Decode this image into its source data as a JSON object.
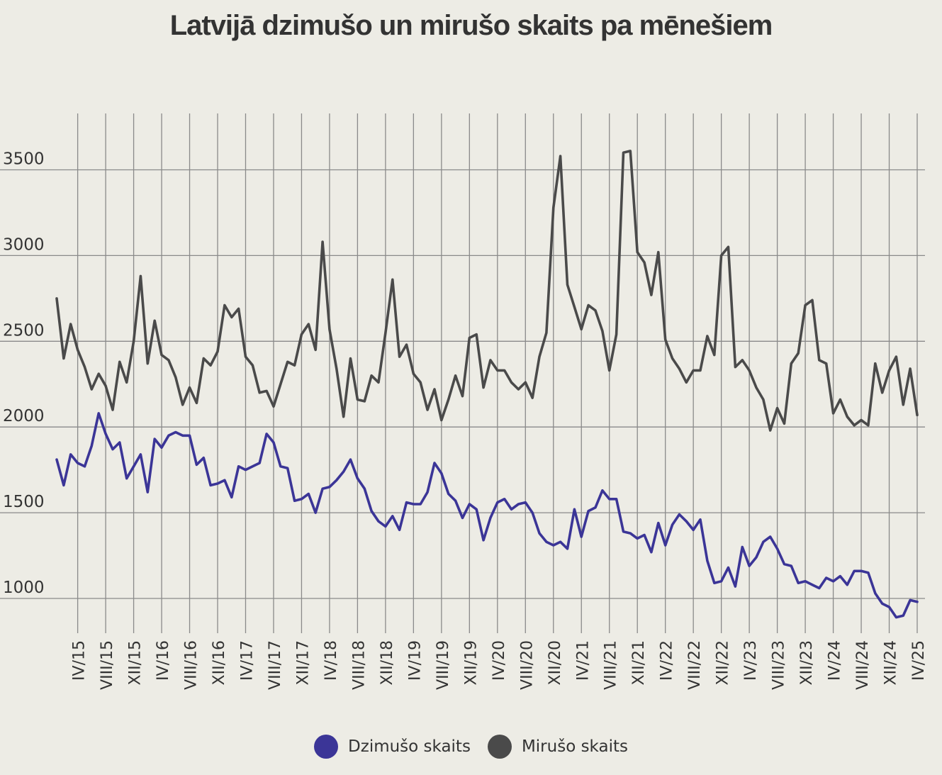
{
  "chart_data": {
    "type": "line",
    "title": "Latvijā dzimušo un mirušo skaits pa mēnešiem",
    "xlabel": "",
    "ylabel": "",
    "ylim": [
      830,
      3800
    ],
    "yticks": [
      1000,
      1500,
      2000,
      2500,
      3000,
      3500
    ],
    "grid": true,
    "legend_position": "bottom-center",
    "x_range": [
      "I/15",
      "IV/25"
    ],
    "x_tick_labels": [
      "IV/15",
      "VIII/15",
      "XII/15",
      "IV/16",
      "VIII/16",
      "XII/16",
      "IV/17",
      "VIII/17",
      "XII/17",
      "IV/18",
      "VIII/18",
      "XII/18",
      "IV/19",
      "VIII/19",
      "XII/19",
      "IV/20",
      "VIII/20",
      "XII/20",
      "IV/21",
      "VIII/21",
      "XII/21",
      "IV/22",
      "VIII/22",
      "XII/22",
      "IV/23",
      "VIII/23",
      "XII/23",
      "IV/24",
      "VIII/24",
      "XII/24",
      "IV/25"
    ],
    "series": [
      {
        "name": "Dzimušo skaits",
        "color": "#3b3597",
        "values": [
          1810,
          1660,
          1840,
          1790,
          1770,
          1890,
          2080,
          1960,
          1870,
          1910,
          1700,
          1770,
          1840,
          1620,
          1930,
          1880,
          1950,
          1970,
          1950,
          1950,
          1780,
          1820,
          1660,
          1670,
          1690,
          1590,
          1770,
          1750,
          1770,
          1790,
          1960,
          1910,
          1770,
          1760,
          1570,
          1580,
          1610,
          1500,
          1640,
          1650,
          1690,
          1740,
          1810,
          1700,
          1640,
          1510,
          1450,
          1420,
          1480,
          1400,
          1560,
          1550,
          1550,
          1620,
          1790,
          1730,
          1610,
          1570,
          1470,
          1550,
          1520,
          1340,
          1470,
          1560,
          1580,
          1520,
          1550,
          1560,
          1500,
          1380,
          1330,
          1310,
          1330,
          1290,
          1520,
          1360,
          1510,
          1530,
          1630,
          1580,
          1580,
          1390,
          1380,
          1350,
          1370,
          1270,
          1440,
          1310,
          1430,
          1490,
          1450,
          1400,
          1460,
          1220,
          1090,
          1100,
          1180,
          1070,
          1300,
          1190,
          1240,
          1330,
          1360,
          1290,
          1200,
          1190,
          1090,
          1100,
          1080,
          1060,
          1120,
          1100,
          1130,
          1080,
          1160,
          1160,
          1150,
          1030,
          970,
          950,
          890,
          900,
          990,
          980
        ]
      },
      {
        "name": "Mirušo skaits",
        "color": "#4a4a4a",
        "values": [
          2750,
          2400,
          2600,
          2450,
          2350,
          2220,
          2310,
          2240,
          2100,
          2380,
          2260,
          2500,
          2880,
          2370,
          2620,
          2420,
          2390,
          2290,
          2130,
          2230,
          2140,
          2400,
          2360,
          2440,
          2710,
          2640,
          2690,
          2410,
          2360,
          2200,
          2210,
          2120,
          2250,
          2380,
          2360,
          2540,
          2600,
          2450,
          3080,
          2570,
          2340,
          2060,
          2400,
          2160,
          2150,
          2300,
          2260,
          2550,
          2860,
          2410,
          2480,
          2310,
          2260,
          2100,
          2220,
          2040,
          2160,
          2300,
          2180,
          2520,
          2540,
          2230,
          2390,
          2330,
          2330,
          2260,
          2220,
          2260,
          2170,
          2410,
          2550,
          3280,
          3580,
          2830,
          2700,
          2570,
          2710,
          2680,
          2560,
          2330,
          2540,
          3600,
          3610,
          3020,
          2960,
          2770,
          3020,
          2510,
          2400,
          2340,
          2260,
          2330,
          2330,
          2530,
          2420,
          3000,
          3050,
          2350,
          2390,
          2330,
          2230,
          2160,
          1980,
          2110,
          2020,
          2370,
          2430,
          2710,
          2740,
          2390,
          2370,
          2080,
          2160,
          2060,
          2010,
          2040,
          2010,
          2370,
          2200,
          2330,
          2410,
          2130,
          2340,
          2070
        ]
      }
    ]
  }
}
